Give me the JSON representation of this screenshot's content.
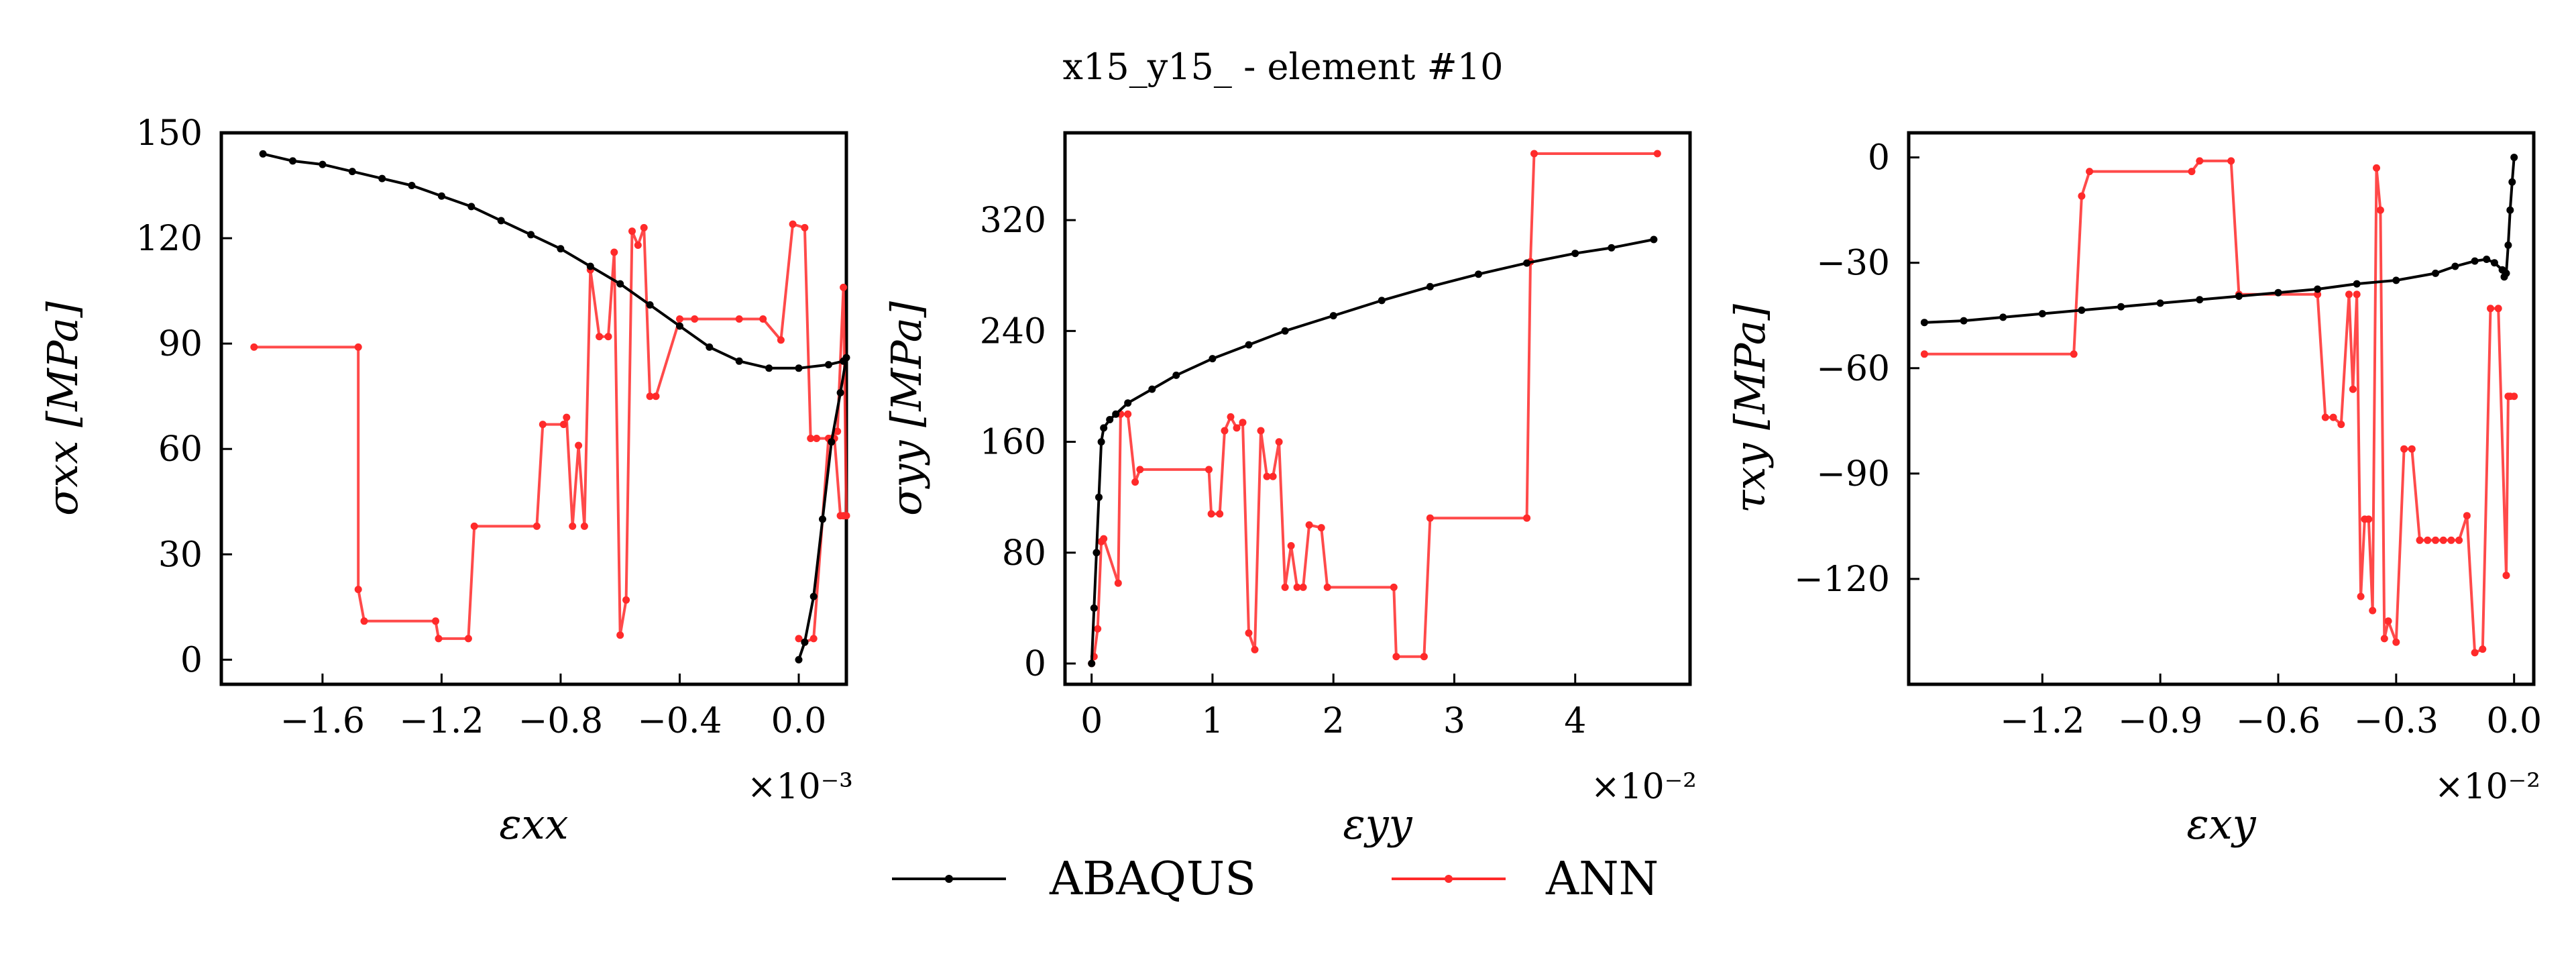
{
  "title": "x15_y15_ - element #10",
  "legend": [
    {
      "label": "ABAQUS",
      "color": "#000000"
    },
    {
      "label": "ANN",
      "color": "#ff2a2a"
    }
  ],
  "chart_data": [
    {
      "type": "line",
      "xlabel": "εxx",
      "ylabel": "σxx [MPa]",
      "x_multiplier": "×10⁻³",
      "xlim": [
        -1.94,
        0.16
      ],
      "ylim": [
        -7,
        150
      ],
      "xticks": [
        -1.6,
        -1.2,
        -0.8,
        -0.4,
        0.0
      ],
      "xtick_labels": [
        "−1.6",
        "−1.2",
        "−0.8",
        "−0.4",
        "0.0"
      ],
      "yticks": [
        0,
        30,
        60,
        90,
        120,
        150
      ],
      "ytick_labels": [
        "0",
        "30",
        "60",
        "90",
        "120",
        "150"
      ],
      "series": [
        {
          "name": "ABAQUS",
          "color": "#000000",
          "x": [
            0.0,
            0.02,
            0.05,
            0.08,
            0.11,
            0.14,
            0.16,
            0.15,
            0.1,
            0.0,
            -0.1,
            -0.2,
            -0.3,
            -0.4,
            -0.5,
            -0.6,
            -0.7,
            -0.8,
            -0.9,
            -1.0,
            -1.1,
            -1.2,
            -1.3,
            -1.4,
            -1.5,
            -1.6,
            -1.7,
            -1.8
          ],
          "y": [
            0,
            5,
            18,
            40,
            62,
            76,
            86,
            85,
            84,
            83,
            83,
            85,
            89,
            95,
            101,
            107,
            112,
            117,
            121,
            125,
            129,
            132,
            135,
            137,
            139,
            141,
            142,
            144
          ]
        },
        {
          "name": "ANN",
          "color": "#ff2a2a",
          "x": [
            -1.83,
            -1.48,
            -1.48,
            -1.46,
            -1.22,
            -1.21,
            -1.11,
            -1.09,
            -0.88,
            -0.86,
            -0.79,
            -0.78,
            -0.76,
            -0.74,
            -0.72,
            -0.7,
            -0.67,
            -0.64,
            -0.62,
            -0.6,
            -0.58,
            -0.56,
            -0.54,
            -0.52,
            -0.5,
            -0.48,
            -0.4,
            -0.35,
            -0.2,
            -0.12,
            -0.06,
            -0.02,
            0.02,
            0.04,
            0.06,
            0.1,
            0.12,
            0.14,
            0.15,
            0.16,
            0.15,
            0.13,
            0.1,
            0.05,
            0.02,
            0.0
          ],
          "y": [
            89,
            89,
            20,
            11,
            11,
            6,
            6,
            38,
            38,
            67,
            67,
            69,
            38,
            61,
            38,
            111,
            92,
            92,
            116,
            7,
            17,
            122,
            118,
            123,
            75,
            75,
            97,
            97,
            97,
            97,
            91,
            124,
            123,
            63,
            63,
            63,
            63,
            41,
            41,
            41,
            106,
            65,
            63,
            6,
            5,
            6
          ]
        }
      ]
    },
    {
      "type": "line",
      "xlabel": "εyy",
      "ylabel": "σyy [MPa]",
      "x_multiplier": "×10⁻²",
      "xlim": [
        -0.22,
        4.95
      ],
      "ylim": [
        -15,
        383
      ],
      "xticks": [
        0,
        1,
        2,
        3,
        4
      ],
      "xtick_labels": [
        "0",
        "1",
        "2",
        "3",
        "4"
      ],
      "yticks": [
        0,
        80,
        160,
        240,
        320
      ],
      "ytick_labels": [
        "0",
        "80",
        "160",
        "240",
        "320"
      ],
      "series": [
        {
          "name": "ABAQUS",
          "color": "#000000",
          "x": [
            0.0,
            0.02,
            0.04,
            0.06,
            0.08,
            0.1,
            0.15,
            0.2,
            0.3,
            0.5,
            0.7,
            1.0,
            1.3,
            1.6,
            2.0,
            2.4,
            2.8,
            3.2,
            3.6,
            4.0,
            4.3,
            4.65
          ],
          "y": [
            0,
            40,
            80,
            120,
            160,
            170,
            176,
            180,
            188,
            198,
            208,
            220,
            230,
            240,
            251,
            262,
            272,
            281,
            289,
            296,
            300,
            306
          ]
        },
        {
          "name": "ANN",
          "color": "#ff2a2a",
          "x": [
            0.0,
            0.02,
            0.05,
            0.08,
            0.1,
            0.22,
            0.24,
            0.3,
            0.36,
            0.4,
            0.97,
            0.99,
            1.06,
            1.1,
            1.15,
            1.2,
            1.25,
            1.3,
            1.35,
            1.4,
            1.45,
            1.5,
            1.55,
            1.6,
            1.65,
            1.7,
            1.75,
            1.8,
            1.9,
            1.95,
            2.5,
            2.52,
            2.75,
            2.8,
            3.6,
            3.63,
            3.66,
            4.68
          ],
          "y": [
            0,
            5,
            25,
            88,
            90,
            58,
            180,
            180,
            131,
            140,
            140,
            108,
            108,
            168,
            178,
            170,
            174,
            22,
            10,
            168,
            135,
            135,
            160,
            55,
            85,
            55,
            55,
            100,
            98,
            55,
            55,
            5,
            5,
            105,
            105,
            290,
            368,
            368
          ]
        }
      ]
    },
    {
      "type": "line",
      "xlabel": "εxy",
      "ylabel": "τxy [MPa]",
      "x_multiplier": "×10⁻²",
      "xlim": [
        -1.54,
        0.05
      ],
      "ylim": [
        -150,
        7
      ],
      "xticks": [
        -1.2,
        -0.9,
        -0.6,
        -0.3,
        0.0
      ],
      "xtick_labels": [
        "−1.2",
        "−0.9",
        "−0.6",
        "−0.3",
        "0.0"
      ],
      "yticks": [
        0,
        -30,
        -60,
        -90,
        -120
      ],
      "ytick_labels": [
        "0",
        "−30",
        "−60",
        "−90",
        "−120"
      ],
      "series": [
        {
          "name": "ABAQUS",
          "color": "#000000",
          "x": [
            0.0,
            -0.005,
            -0.01,
            -0.015,
            -0.02,
            -0.025,
            -0.03,
            -0.05,
            -0.07,
            -0.1,
            -0.15,
            -0.2,
            -0.3,
            -0.4,
            -0.5,
            -0.6,
            -0.7,
            -0.8,
            -0.9,
            -1.0,
            -1.1,
            -1.2,
            -1.3,
            -1.4,
            -1.5
          ],
          "y": [
            0,
            -7,
            -15,
            -25,
            -33,
            -34,
            -32,
            -30,
            -29,
            -29.5,
            -31,
            -33,
            -35,
            -36,
            -37.5,
            -38.5,
            -39.5,
            -40.5,
            -41.5,
            -42.5,
            -43.5,
            -44.5,
            -45.5,
            -46.5,
            -47
          ]
        },
        {
          "name": "ANN",
          "color": "#ff2a2a",
          "x": [
            -1.5,
            -1.12,
            -1.1,
            -1.08,
            -0.82,
            -0.8,
            -0.72,
            -0.7,
            -0.5,
            -0.48,
            -0.46,
            -0.44,
            -0.42,
            -0.41,
            -0.4,
            -0.39,
            -0.38,
            -0.37,
            -0.36,
            -0.35,
            -0.34,
            -0.33,
            -0.32,
            -0.3,
            -0.28,
            -0.26,
            -0.24,
            -0.22,
            -0.2,
            -0.18,
            -0.16,
            -0.14,
            -0.12,
            -0.1,
            -0.08,
            -0.06,
            -0.04,
            -0.02,
            -0.015,
            -0.01,
            0.0
          ],
          "y": [
            -56,
            -56,
            -11,
            -4,
            -4,
            -1,
            -1,
            -39,
            -39,
            -74,
            -74,
            -76,
            -39,
            -66,
            -39,
            -125,
            -103,
            -103,
            -129,
            -3,
            -15,
            -137,
            -132,
            -138,
            -83,
            -83,
            -109,
            -109,
            -109,
            -109,
            -109,
            -109,
            -102,
            -141,
            -140,
            -43,
            -43,
            -119,
            -68,
            -68,
            -68
          ]
        }
      ]
    }
  ]
}
